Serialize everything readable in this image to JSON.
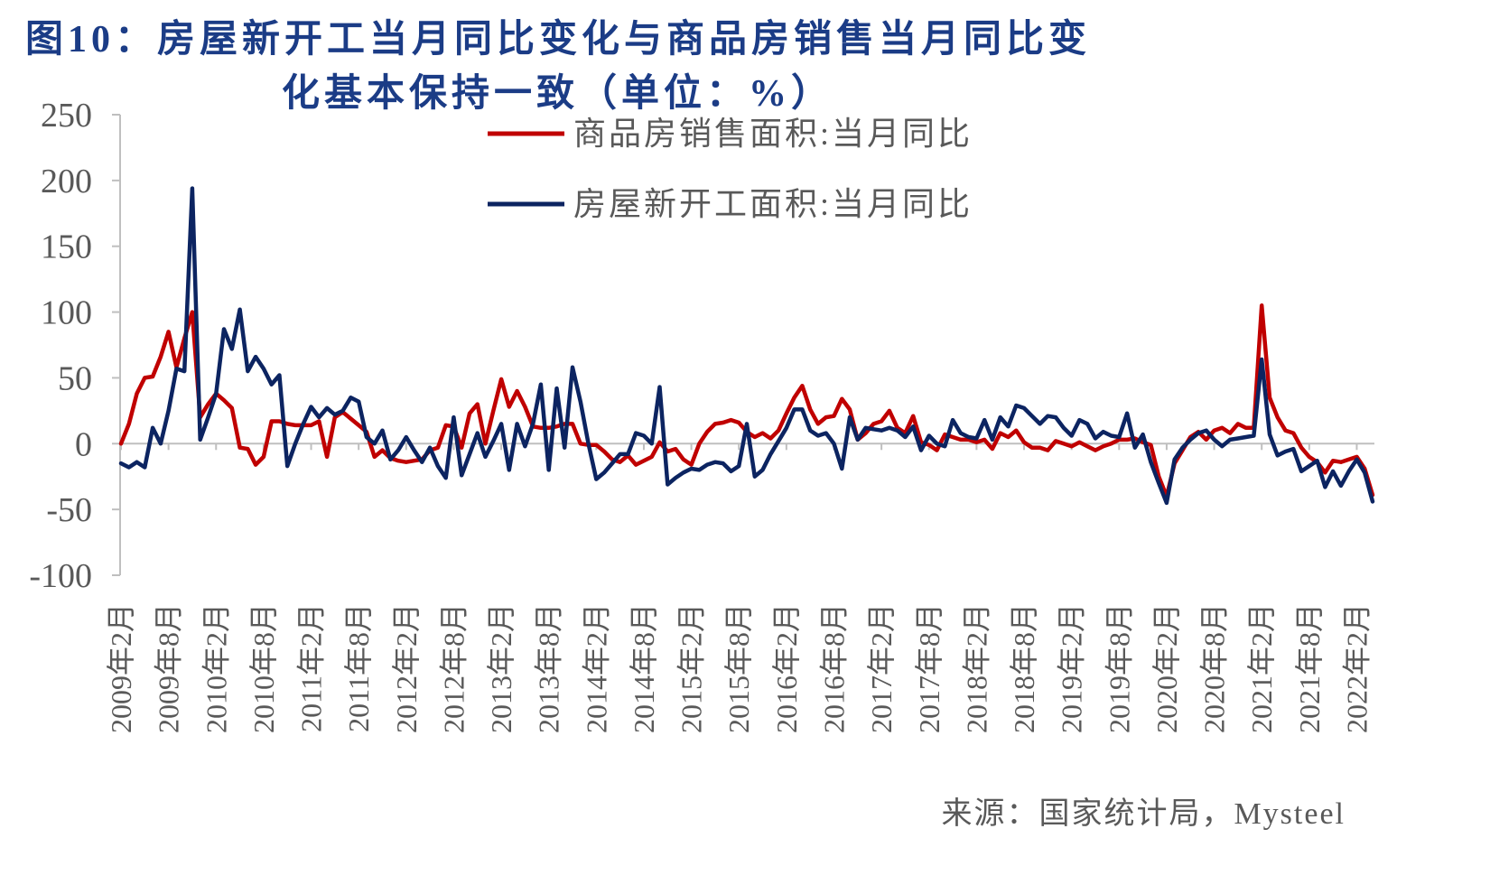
{
  "source": "来源：国家统计局，Mysteel",
  "colors": {
    "title": "#1B3C86",
    "axis": "#BFBFBF",
    "label": "#595959"
  },
  "chart_data": {
    "type": "line",
    "title_lines": [
      "图10：房屋新开工当月同比变化与商品房销售当月同比变",
      "化基本保持一致（单位：%）"
    ],
    "xlabel": "",
    "ylabel": "",
    "ylim": [
      -100,
      250
    ],
    "y_ticks": [
      250,
      200,
      150,
      100,
      50,
      0,
      -50,
      -100
    ],
    "grid": false,
    "legend": "top-center",
    "x_tick_labels": [
      "2009年2月",
      "2009年8月",
      "2010年2月",
      "2010年8月",
      "2011年2月",
      "2011年8月",
      "2012年2月",
      "2012年8月",
      "2013年2月",
      "2013年8月",
      "2014年2月",
      "2014年8月",
      "2015年2月",
      "2015年8月",
      "2016年2月",
      "2016年8月",
      "2017年2月",
      "2017年8月",
      "2018年2月",
      "2018年8月",
      "2019年2月",
      "2019年8月",
      "2020年2月",
      "2020年8月",
      "2021年2月",
      "2021年8月",
      "2022年2月"
    ],
    "series": [
      {
        "name": "商品房销售面积:当月同比",
        "color": "#C00000",
        "values": [
          0,
          15,
          38,
          50,
          51,
          66,
          85,
          58,
          80,
          100,
          20,
          30,
          38,
          33,
          27,
          -3,
          -4,
          -16,
          -10,
          17,
          17,
          15,
          14,
          14,
          14,
          17,
          -10,
          20,
          24,
          19,
          14,
          9,
          -10,
          -5,
          -11,
          -13,
          -14,
          -13,
          -12,
          -5,
          -3,
          14,
          13,
          -3,
          23,
          30,
          0,
          25,
          49,
          28,
          40,
          28,
          13,
          12,
          12,
          13,
          15,
          15,
          0,
          -1,
          -1,
          -6,
          -12,
          -14,
          -9,
          -16,
          -13,
          -10,
          1,
          -6,
          -4,
          -12,
          -16,
          0,
          9,
          15,
          16,
          18,
          16,
          9,
          5,
          8,
          4,
          10,
          23,
          35,
          44,
          26,
          15,
          20,
          21,
          34,
          26,
          3,
          8,
          15,
          17,
          25,
          12,
          8,
          21,
          1,
          -1,
          -5,
          7,
          5,
          3,
          3,
          1,
          3,
          -4,
          8,
          5,
          10,
          1,
          -3,
          -3,
          -5,
          2,
          0,
          -2,
          1,
          -2,
          -5,
          -2,
          0,
          3,
          3,
          4,
          1,
          -1,
          -25,
          -40,
          -15,
          -5,
          5,
          9,
          3,
          10,
          12,
          8,
          15,
          12,
          12,
          105,
          35,
          20,
          10,
          8,
          -3,
          -10,
          -14,
          -22,
          -13,
          -14,
          -12,
          -10,
          -19,
          -39
        ]
      },
      {
        "name": "房屋新开工面积:当月同比",
        "color": "#0C2461",
        "values": [
          -15,
          -18,
          -14,
          -18,
          12,
          0,
          25,
          57,
          55,
          194,
          3,
          20,
          38,
          87,
          72,
          102,
          55,
          66,
          57,
          45,
          52,
          -17,
          0,
          15,
          28,
          20,
          27,
          22,
          25,
          35,
          32,
          5,
          0,
          10,
          -12,
          -5,
          5,
          -5,
          -14,
          -3,
          -17,
          -26,
          20,
          -24,
          -8,
          8,
          -10,
          2,
          15,
          -20,
          15,
          -2,
          15,
          45,
          -20,
          42,
          -3,
          58,
          32,
          0,
          -27,
          -22,
          -15,
          -8,
          -8,
          8,
          6,
          0,
          43,
          -31,
          -26,
          -22,
          -19,
          -20,
          -16,
          -14,
          -15,
          -21,
          -17,
          15,
          -25,
          -20,
          -8,
          2,
          12,
          26,
          26,
          10,
          6,
          8,
          0,
          -19,
          20,
          3,
          12,
          11,
          10,
          12,
          10,
          5,
          13,
          -5,
          6,
          0,
          -2,
          18,
          8,
          5,
          4,
          18,
          3,
          20,
          13,
          29,
          27,
          21,
          15,
          21,
          20,
          12,
          6,
          18,
          15,
          4,
          9,
          6,
          5,
          23,
          -3,
          7,
          -14,
          -30,
          -45,
          -12,
          -3,
          3,
          8,
          10,
          3,
          -2,
          3,
          4,
          5,
          6,
          64,
          7,
          -9,
          -6,
          -4,
          -21,
          -17,
          -13,
          -33,
          -21,
          -32,
          -21,
          -12,
          -22,
          -44
        ]
      }
    ]
  }
}
